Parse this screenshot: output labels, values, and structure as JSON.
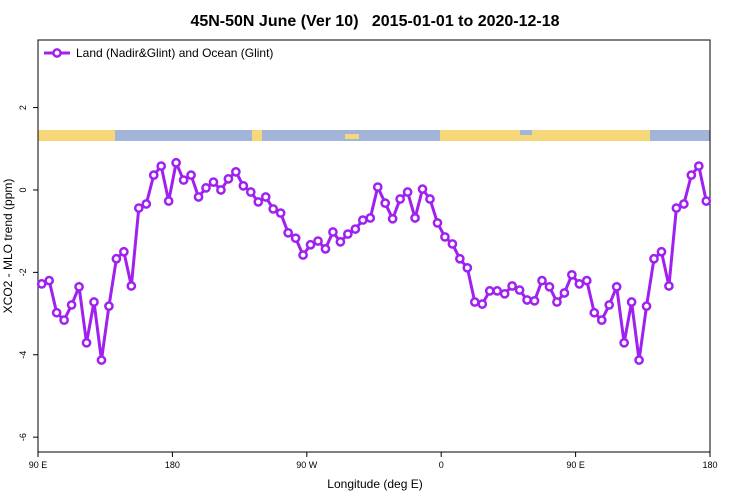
{
  "chart_data": {
    "type": "line",
    "title": "45N-50N June (Ver 10)   2015-01-01 to 2020-12-18",
    "xlabel": "Longitude (deg E)",
    "ylabel": "XCO2 - MLO trend (ppm)",
    "xlim": [
      90,
      540
    ],
    "ylim": [
      -6.36,
      3.64
    ],
    "xticks": [
      {
        "value": 90,
        "label": "90 E"
      },
      180,
      {
        "value": 270,
        "label": "90 W"
      },
      {
        "value": 360,
        "label": "0"
      },
      {
        "value": 450,
        "label": "90 E"
      },
      {
        "value": 540,
        "label": "180"
      }
    ],
    "yticks": [
      -6,
      -4,
      -2,
      0,
      2
    ],
    "legend": "top-left",
    "x": [
      92.5,
      97.5,
      102.5,
      107.5,
      112.5,
      117.5,
      122.5,
      127.5,
      132.5,
      137.5,
      142.5,
      147.5,
      152.5,
      157.5,
      162.5,
      167.5,
      172.5,
      177.5,
      182.5,
      187.5,
      192.5,
      197.5,
      202.5,
      207.5,
      212.5,
      217.5,
      222.5,
      227.5,
      232.5,
      237.5,
      242.5,
      247.5,
      252.5,
      257.5,
      262.5,
      267.5,
      272.5,
      277.5,
      282.5,
      287.5,
      292.5,
      297.5,
      302.5,
      307.5,
      312.5,
      317.5,
      322.5,
      327.5,
      332.5,
      337.5,
      342.5,
      347.5,
      352.5,
      357.5,
      362.5,
      367.5,
      372.5,
      377.5,
      382.5,
      387.5,
      392.5,
      397.5,
      402.5,
      407.5,
      412.5,
      417.5,
      422.5,
      427.5,
      432.5,
      437.5,
      442.5,
      447.5,
      452.5,
      457.5,
      462.5,
      467.5,
      472.5,
      477.5,
      482.5,
      487.5,
      492.5,
      497.5,
      502.5,
      507.5,
      512.5,
      517.5,
      522.5,
      527.5,
      532.5,
      537.5
    ],
    "series": [
      {
        "name": "Land (Nadir&Glint) and Ocean (Glint)",
        "color": "#a020f0",
        "values": [
          -2.28,
          -2.2,
          -2.98,
          -3.16,
          -2.79,
          -2.35,
          -3.71,
          -2.72,
          -4.13,
          -2.82,
          -1.67,
          -1.5,
          -2.33,
          -0.44,
          -0.34,
          0.36,
          0.58,
          -0.27,
          0.66,
          0.24,
          0.36,
          -0.17,
          0.05,
          0.19,
          0,
          0.27,
          0.44,
          0.1,
          -0.05,
          -0.29,
          -0.17,
          -0.46,
          -0.56,
          -1.04,
          -1.17,
          -1.58,
          -1.33,
          -1.24,
          -1.43,
          -1.02,
          -1.26,
          -1.07,
          -0.95,
          -0.73,
          -0.68,
          0.07,
          -0.32,
          -0.7,
          -0.22,
          -0.05,
          -0.68,
          0.02,
          -0.22,
          -0.8,
          -1.14,
          -1.31,
          -1.67,
          -1.89,
          -2.72,
          -2.77,
          -2.45,
          -2.45,
          -2.52,
          -2.33,
          -2.43,
          -2.67,
          -2.69,
          -2.2,
          -2.35,
          -2.72,
          -2.5,
          -2.06,
          -2.28,
          -2.2,
          -2.98,
          -3.16,
          -2.79,
          -2.35,
          -3.71,
          -2.72,
          -4.13,
          -2.82,
          -1.67,
          -1.5,
          -2.33,
          -0.44,
          -0.34,
          0.36,
          0.58,
          -0.27
        ]
      }
    ]
  }
}
